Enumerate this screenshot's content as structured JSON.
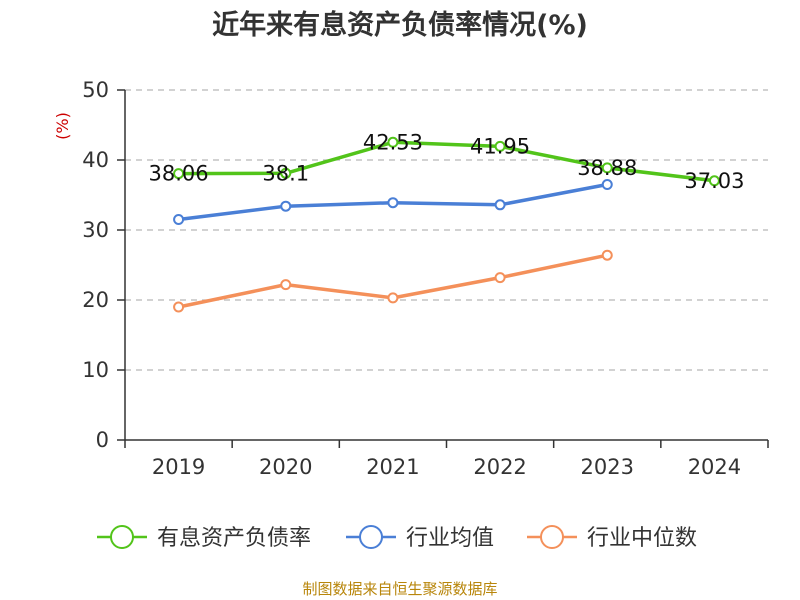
{
  "chart_data": {
    "type": "line",
    "title": "近年来有息资产负债率情况(%)",
    "ylabel": "(%)",
    "categories": [
      "2019",
      "2020",
      "2021",
      "2022",
      "2023",
      "2024"
    ],
    "y_ticks": [
      "0",
      "10",
      "20",
      "30",
      "40",
      "50"
    ],
    "ylim": [
      0,
      50
    ],
    "grid": true,
    "legend_position": "bottom",
    "series": [
      {
        "name": "有息资产负债率",
        "color": "#52c41a",
        "values": [
          38.06,
          38.1,
          42.53,
          41.95,
          38.88,
          37.03
        ],
        "labels": [
          "38.06",
          "38.1",
          "42.53",
          "41.95",
          "38.88",
          "37.03"
        ]
      },
      {
        "name": "行业均值",
        "color": "#4a7fd6",
        "values": [
          31.5,
          33.4,
          33.9,
          33.6,
          36.5,
          null
        ]
      },
      {
        "name": "行业中位数",
        "color": "#f4905a",
        "values": [
          19.0,
          22.2,
          20.3,
          23.2,
          26.4,
          null
        ]
      }
    ]
  },
  "source": "制图数据来自恒生聚源数据库"
}
